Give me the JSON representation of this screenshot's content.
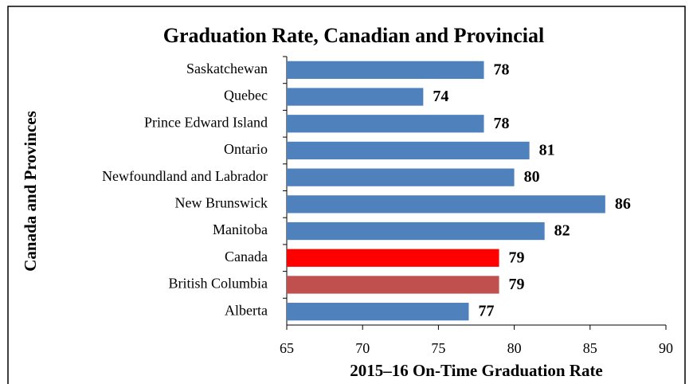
{
  "chart_data": {
    "type": "hbar",
    "title": "Graduation Rate, Canadian and Provincial",
    "x_label": "2015–16 On-Time Graduation Rate",
    "y_label": "Canada and Provinces",
    "categories": [
      "Saskatchewan",
      "Quebec",
      "Prince Edward Island",
      "Ontario",
      "Newfoundland and Labrador",
      "New Brunswick",
      "Manitoba",
      "Canada",
      "British Columbia",
      "Alberta"
    ],
    "values": [
      78,
      74,
      78,
      81,
      80,
      86,
      82,
      79,
      79,
      77
    ],
    "colors": [
      "#4f81bd",
      "#4f81bd",
      "#4f81bd",
      "#4f81bd",
      "#4f81bd",
      "#4f81bd",
      "#4f81bd",
      "#ff0000",
      "#c0504d",
      "#4f81bd"
    ],
    "xlim": [
      65,
      90
    ],
    "xticks": [
      65,
      70,
      75,
      80,
      85,
      90
    ],
    "grid": false
  }
}
